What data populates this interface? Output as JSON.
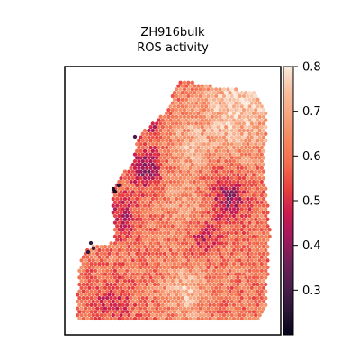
{
  "chart_data": {
    "type": "heatmap",
    "title_lines": [
      "ZH916bulk",
      "ROS activity"
    ],
    "xlabel": "",
    "ylabel": "",
    "grid": false,
    "legend": "colorbar-right",
    "colormap": "rocket",
    "color_range": [
      0.2,
      0.8
    ],
    "colorbar_ticks": [
      {
        "value": 0.3,
        "label": "0.3"
      },
      {
        "value": 0.4,
        "label": "0.4"
      },
      {
        "value": 0.5,
        "label": "0.5"
      },
      {
        "value": 0.6,
        "label": "0.6"
      },
      {
        "value": 0.7,
        "label": "0.7"
      },
      {
        "value": 0.8,
        "label": "0.8"
      }
    ],
    "colors": [
      "#03051a",
      "#2b1537",
      "#4c1d4b",
      "#701f57",
      "#a11a5b",
      "#cb1b4f",
      "#e83f3f",
      "#f26c4f",
      "#f4875e",
      "#f6a47f",
      "#f8bfa0",
      "#faebdd"
    ],
    "regions": [
      {
        "id": "top-right-high",
        "cx": 0.8,
        "cy": 0.14,
        "r": 0.18,
        "value": 0.76
      },
      {
        "id": "bottom-center-high",
        "cx": 0.56,
        "cy": 0.83,
        "r": 0.1,
        "value": 0.73
      },
      {
        "id": "center-high",
        "cx": 0.57,
        "cy": 0.52,
        "r": 0.1,
        "value": 0.68
      },
      {
        "id": "upper-center-high",
        "cx": 0.58,
        "cy": 0.3,
        "r": 0.09,
        "value": 0.7
      },
      {
        "id": "center-right-low",
        "cx": 0.76,
        "cy": 0.49,
        "r": 0.09,
        "value": 0.42
      },
      {
        "id": "left-edge-low",
        "cx": 0.37,
        "cy": 0.38,
        "r": 0.07,
        "value": 0.38
      },
      {
        "id": "left-middle-low",
        "cx": 0.26,
        "cy": 0.56,
        "r": 0.08,
        "value": 0.46
      },
      {
        "id": "bottom-left-low",
        "cx": 0.22,
        "cy": 0.88,
        "r": 0.08,
        "value": 0.5
      },
      {
        "id": "center-mid-low",
        "cx": 0.64,
        "cy": 0.64,
        "r": 0.07,
        "value": 0.48
      },
      {
        "id": "top-left-low",
        "cx": 0.4,
        "cy": 0.2,
        "r": 0.05,
        "value": 0.44
      }
    ],
    "base_value": 0.6
  }
}
